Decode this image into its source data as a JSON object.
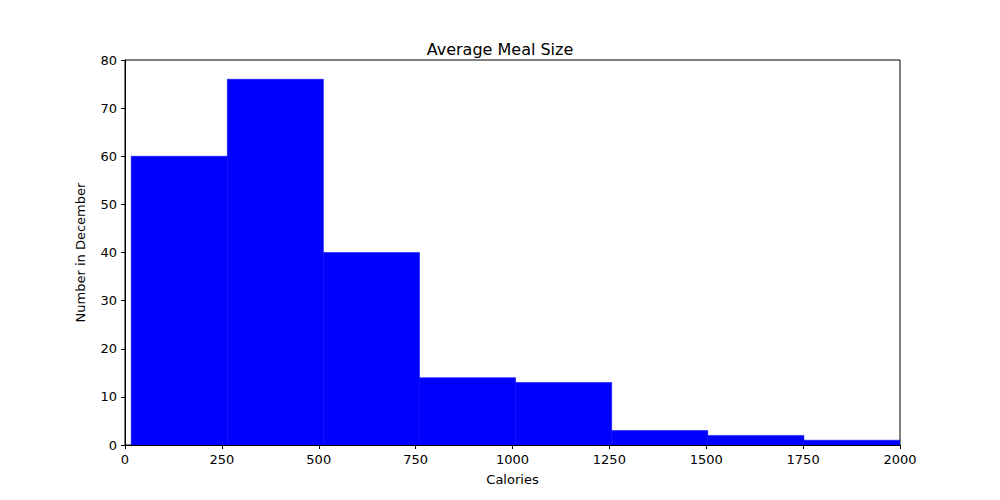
{
  "chart_data": {
    "type": "histogram",
    "title": "Average Meal Size",
    "xlabel": "Calories",
    "ylabel": "Number in December",
    "bins": [
      16,
      264,
      512,
      760,
      1008,
      1256,
      1504,
      1752,
      2000
    ],
    "values": [
      60,
      76,
      40,
      14,
      13,
      3,
      2,
      1
    ],
    "color": "#0000ff",
    "xlim": [
      0,
      2000
    ],
    "xticks": [
      0,
      250,
      500,
      750,
      1000,
      1250,
      1500,
      1750,
      2000
    ],
    "ylim": [
      0,
      80
    ],
    "yticks": [
      0,
      10,
      20,
      30,
      40,
      50,
      60,
      70,
      80
    ],
    "grid": false
  }
}
